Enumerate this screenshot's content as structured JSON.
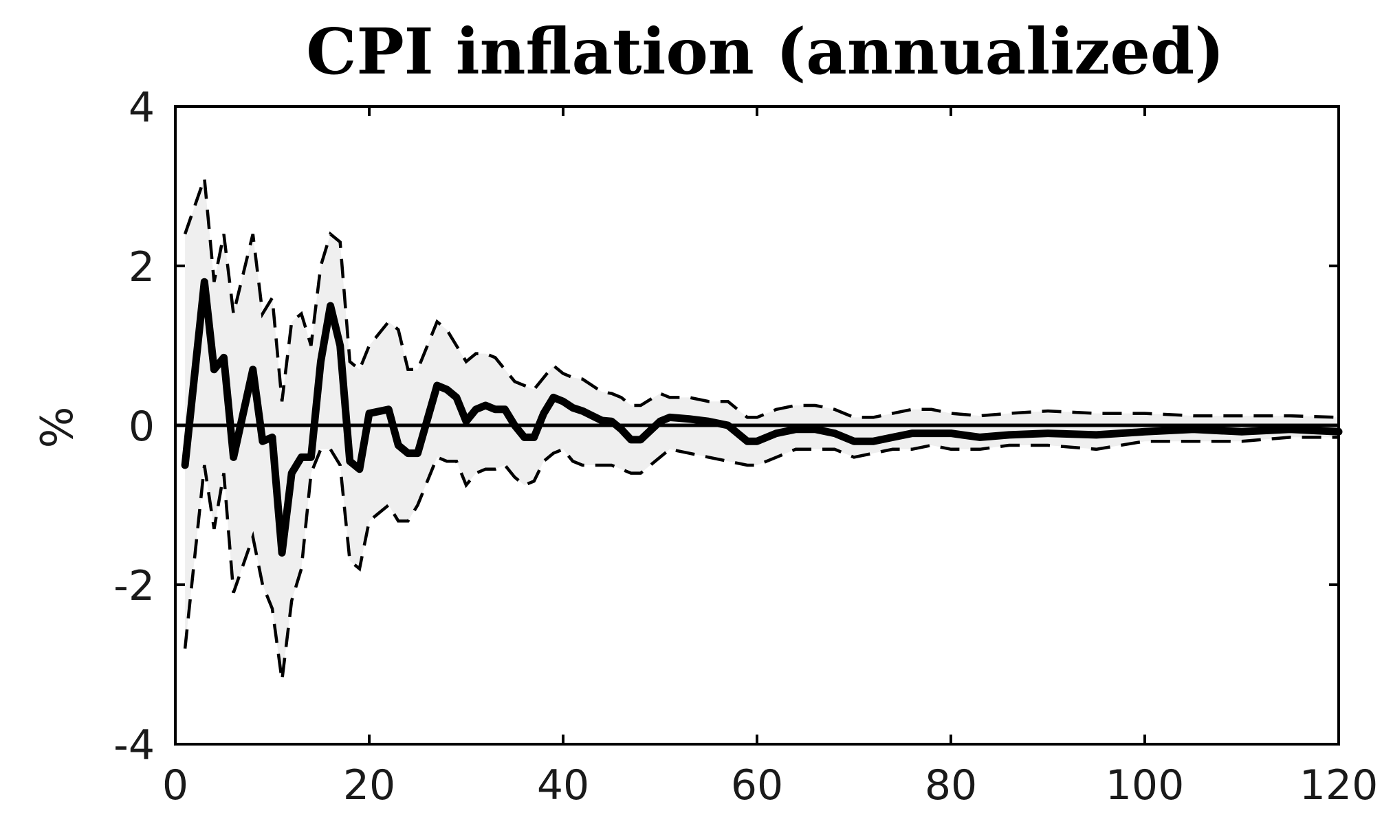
{
  "chart_data": {
    "type": "line",
    "title": "CPI inflation (annualized)",
    "xlabel": "",
    "ylabel": "%",
    "xlim": [
      0,
      120
    ],
    "ylim": [
      -4,
      4
    ],
    "xticks": [
      0,
      20,
      40,
      60,
      80,
      100,
      120
    ],
    "yticks": [
      -4,
      -2,
      0,
      2,
      4
    ],
    "xtick_labels": [
      "0",
      "20",
      "40",
      "60",
      "80",
      "100",
      "120"
    ],
    "ytick_labels": [
      "-4",
      "-2",
      "0",
      "2",
      "4"
    ],
    "grid": false,
    "zero_line": 0,
    "band_color": "#efefef",
    "line_color": "#000000",
    "series": [
      {
        "role": "median",
        "style": "solid-thick",
        "x": [
          1,
          3,
          4,
          5,
          6,
          8,
          9,
          10,
          11,
          12,
          13,
          14,
          15,
          16,
          17,
          18,
          19,
          20,
          22,
          23,
          24,
          25,
          27,
          28,
          29,
          30,
          31,
          32,
          33,
          34,
          35,
          36,
          37,
          38,
          39,
          40,
          41,
          42,
          43,
          44,
          45,
          46,
          47,
          48,
          50,
          51,
          53,
          55,
          57,
          59,
          60,
          62,
          64,
          66,
          68,
          70,
          72,
          74,
          76,
          78,
          80,
          83,
          86,
          90,
          95,
          100,
          105,
          110,
          115,
          120
        ],
        "values": [
          -0.5,
          1.8,
          0.7,
          0.85,
          -0.4,
          0.7,
          -0.2,
          -0.15,
          -1.6,
          -0.6,
          -0.4,
          -0.4,
          0.8,
          1.5,
          1.0,
          -0.45,
          -0.55,
          0.15,
          0.2,
          -0.25,
          -0.35,
          -0.35,
          0.5,
          0.45,
          0.35,
          0.05,
          0.2,
          0.25,
          0.2,
          0.2,
          0.0,
          -0.15,
          -0.15,
          0.15,
          0.35,
          0.3,
          0.22,
          0.18,
          0.12,
          0.06,
          0.05,
          -0.05,
          -0.18,
          -0.18,
          0.05,
          0.1,
          0.08,
          0.05,
          0.0,
          -0.2,
          -0.2,
          -0.1,
          -0.05,
          -0.05,
          -0.1,
          -0.2,
          -0.2,
          -0.15,
          -0.1,
          -0.1,
          -0.1,
          -0.15,
          -0.12,
          -0.1,
          -0.12,
          -0.08,
          -0.05,
          -0.08,
          -0.05,
          -0.08
        ]
      },
      {
        "role": "upper-band",
        "style": "dashed",
        "x": [
          1,
          3,
          4,
          5,
          6,
          8,
          9,
          10,
          11,
          12,
          13,
          14,
          15,
          16,
          17,
          18,
          19,
          20,
          22,
          23,
          24,
          25,
          27,
          28,
          29,
          30,
          31,
          32,
          33,
          34,
          35,
          36,
          37,
          38,
          39,
          40,
          41,
          42,
          43,
          44,
          45,
          46,
          47,
          48,
          50,
          51,
          53,
          55,
          57,
          59,
          60,
          62,
          64,
          66,
          68,
          70,
          72,
          74,
          76,
          78,
          80,
          83,
          86,
          90,
          95,
          100,
          105,
          110,
          115,
          120
        ],
        "values": [
          2.4,
          3.1,
          1.8,
          2.4,
          1.4,
          2.4,
          1.4,
          1.6,
          0.3,
          1.3,
          1.4,
          1.0,
          2.0,
          2.4,
          2.3,
          0.8,
          0.7,
          1.0,
          1.3,
          1.2,
          0.7,
          0.7,
          1.3,
          1.2,
          1.0,
          0.8,
          0.9,
          0.9,
          0.85,
          0.7,
          0.55,
          0.5,
          0.45,
          0.6,
          0.75,
          0.65,
          0.6,
          0.58,
          0.5,
          0.42,
          0.4,
          0.35,
          0.25,
          0.25,
          0.4,
          0.35,
          0.35,
          0.3,
          0.3,
          0.1,
          0.1,
          0.2,
          0.25,
          0.25,
          0.2,
          0.1,
          0.1,
          0.15,
          0.2,
          0.2,
          0.15,
          0.12,
          0.15,
          0.18,
          0.15,
          0.15,
          0.12,
          0.12,
          0.12,
          0.1
        ]
      },
      {
        "role": "lower-band",
        "style": "dashed",
        "x": [
          1,
          3,
          4,
          5,
          6,
          8,
          9,
          10,
          11,
          12,
          13,
          14,
          15,
          16,
          17,
          18,
          19,
          20,
          22,
          23,
          24,
          25,
          27,
          28,
          29,
          30,
          31,
          32,
          33,
          34,
          35,
          36,
          37,
          38,
          39,
          40,
          41,
          42,
          43,
          44,
          45,
          46,
          47,
          48,
          50,
          51,
          53,
          55,
          57,
          59,
          60,
          62,
          64,
          66,
          68,
          70,
          72,
          74,
          76,
          78,
          80,
          83,
          86,
          90,
          95,
          100,
          105,
          110,
          115,
          120
        ],
        "values": [
          -2.8,
          -0.5,
          -1.3,
          -0.6,
          -2.1,
          -1.4,
          -2.0,
          -2.3,
          -3.2,
          -2.2,
          -1.8,
          -0.6,
          -0.3,
          -0.3,
          -0.5,
          -1.7,
          -1.8,
          -1.2,
          -1.0,
          -1.2,
          -1.2,
          -1.0,
          -0.4,
          -0.45,
          -0.45,
          -0.75,
          -0.6,
          -0.55,
          -0.55,
          -0.5,
          -0.65,
          -0.75,
          -0.7,
          -0.45,
          -0.35,
          -0.3,
          -0.45,
          -0.5,
          -0.5,
          -0.5,
          -0.5,
          -0.55,
          -0.6,
          -0.6,
          -0.4,
          -0.3,
          -0.35,
          -0.4,
          -0.45,
          -0.5,
          -0.5,
          -0.4,
          -0.3,
          -0.3,
          -0.3,
          -0.4,
          -0.35,
          -0.3,
          -0.3,
          -0.25,
          -0.3,
          -0.3,
          -0.25,
          -0.25,
          -0.3,
          -0.2,
          -0.2,
          -0.2,
          -0.15,
          -0.15
        ]
      }
    ]
  }
}
